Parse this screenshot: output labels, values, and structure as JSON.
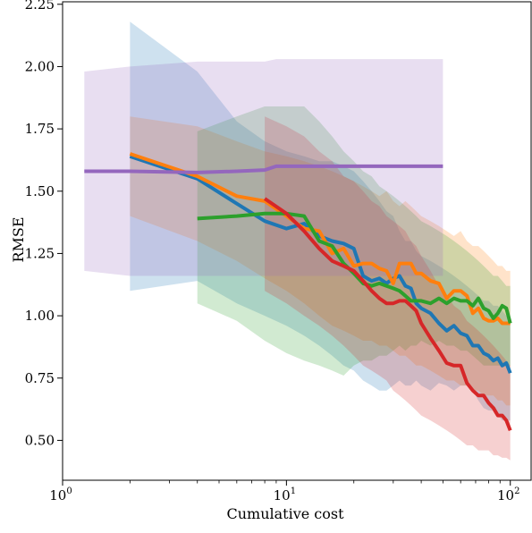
{
  "chart_data": {
    "type": "line",
    "title": "",
    "xlabel": "Cumulative cost",
    "ylabel": "RMSE",
    "x_scale": "log",
    "xlim": [
      1,
      125
    ],
    "ylim": [
      0.34,
      2.26
    ],
    "x_ticks": [
      1,
      10,
      100
    ],
    "x_tick_labels": [
      "10",
      "10",
      "10"
    ],
    "x_tick_exponents": [
      "0",
      "1",
      "2"
    ],
    "y_ticks": [
      0.5,
      0.75,
      1.0,
      1.25,
      1.5,
      1.75,
      2.0,
      2.25
    ],
    "y_tick_labels": [
      "0.50",
      "0.75",
      "1.00",
      "1.25",
      "1.50",
      "1.75",
      "2.00",
      "2.25"
    ],
    "grid": false,
    "legend": "none",
    "series": [
      {
        "color": "#1f77b4",
        "x": [
          2,
          4,
          6,
          8,
          10,
          12,
          14,
          16,
          18,
          20,
          22,
          24,
          26,
          28,
          30,
          32,
          34,
          36,
          38,
          40,
          44,
          48,
          52,
          56,
          60,
          64,
          68,
          72,
          76,
          80,
          84,
          88,
          92,
          96,
          100
        ],
        "y": [
          1.64,
          1.55,
          1.45,
          1.38,
          1.35,
          1.37,
          1.32,
          1.3,
          1.29,
          1.27,
          1.16,
          1.14,
          1.15,
          1.13,
          1.15,
          1.16,
          1.12,
          1.11,
          1.05,
          1.03,
          1.01,
          0.97,
          0.94,
          0.96,
          0.93,
          0.92,
          0.88,
          0.88,
          0.85,
          0.84,
          0.82,
          0.83,
          0.8,
          0.81,
          0.77
        ],
        "lower": [
          1.1,
          1.14,
          1.05,
          1.0,
          0.96,
          0.92,
          0.88,
          0.84,
          0.8,
          0.78,
          0.74,
          0.72,
          0.7,
          0.7,
          0.72,
          0.74,
          0.72,
          0.72,
          0.74,
          0.72,
          0.7,
          0.73,
          0.72,
          0.7,
          0.72,
          0.72,
          0.7,
          0.66,
          0.63,
          0.62,
          0.62,
          0.6,
          0.58,
          0.58,
          0.58
        ],
        "upper": [
          2.18,
          1.98,
          1.78,
          1.7,
          1.66,
          1.64,
          1.62,
          1.62,
          1.6,
          1.58,
          1.54,
          1.5,
          1.46,
          1.42,
          1.4,
          1.34,
          1.3,
          1.3,
          1.26,
          1.24,
          1.22,
          1.2,
          1.18,
          1.16,
          1.14,
          1.12,
          1.1,
          1.08,
          1.06,
          1.06,
          1.04,
          1.04,
          1.02,
          1.0,
          0.98
        ]
      },
      {
        "color": "#ff7f0e",
        "x": [
          2,
          4,
          6,
          8,
          10,
          12,
          14,
          16,
          18,
          20,
          22,
          24,
          26,
          28,
          30,
          32,
          34,
          36,
          38,
          40,
          44,
          48,
          52,
          56,
          60,
          64,
          68,
          72,
          76,
          80,
          84,
          88,
          92,
          96,
          100
        ],
        "y": [
          1.65,
          1.56,
          1.48,
          1.46,
          1.4,
          1.35,
          1.34,
          1.25,
          1.27,
          1.2,
          1.21,
          1.21,
          1.19,
          1.18,
          1.13,
          1.21,
          1.21,
          1.21,
          1.17,
          1.17,
          1.14,
          1.13,
          1.07,
          1.1,
          1.1,
          1.08,
          1.01,
          1.03,
          0.99,
          0.98,
          0.98,
          0.99,
          0.97,
          0.97,
          0.97
        ],
        "lower": [
          1.4,
          1.3,
          1.22,
          1.15,
          1.1,
          1.05,
          1.0,
          0.96,
          0.94,
          0.92,
          0.9,
          0.9,
          0.88,
          0.88,
          0.86,
          0.84,
          0.84,
          0.82,
          0.8,
          0.8,
          0.78,
          0.76,
          0.74,
          0.74,
          0.72,
          0.72,
          0.7,
          0.7,
          0.68,
          0.68,
          0.68,
          0.66,
          0.66,
          0.64,
          0.64
        ],
        "upper": [
          1.8,
          1.76,
          1.7,
          1.66,
          1.64,
          1.62,
          1.6,
          1.58,
          1.56,
          1.54,
          1.52,
          1.5,
          1.48,
          1.5,
          1.46,
          1.44,
          1.46,
          1.44,
          1.42,
          1.4,
          1.38,
          1.36,
          1.34,
          1.32,
          1.34,
          1.3,
          1.28,
          1.28,
          1.26,
          1.24,
          1.22,
          1.2,
          1.2,
          1.18,
          1.18
        ]
      },
      {
        "color": "#2ca02c",
        "x": [
          4,
          6,
          8,
          10,
          12,
          14,
          16,
          18,
          20,
          22,
          24,
          26,
          28,
          30,
          32,
          34,
          36,
          38,
          40,
          44,
          48,
          52,
          56,
          60,
          64,
          68,
          72,
          76,
          80,
          84,
          88,
          92,
          96,
          100
        ],
        "y": [
          1.39,
          1.4,
          1.41,
          1.41,
          1.4,
          1.3,
          1.28,
          1.21,
          1.17,
          1.13,
          1.12,
          1.13,
          1.12,
          1.11,
          1.1,
          1.08,
          1.06,
          1.06,
          1.06,
          1.05,
          1.07,
          1.05,
          1.07,
          1.06,
          1.06,
          1.04,
          1.07,
          1.03,
          1.02,
          0.99,
          1.01,
          1.04,
          1.03,
          0.97
        ],
        "lower": [
          1.05,
          0.98,
          0.9,
          0.85,
          0.82,
          0.8,
          0.78,
          0.76,
          0.8,
          0.82,
          0.82,
          0.84,
          0.84,
          0.86,
          0.88,
          0.86,
          0.88,
          0.88,
          0.9,
          0.88,
          0.9,
          0.88,
          0.88,
          0.86,
          0.86,
          0.84,
          0.82,
          0.8,
          0.8,
          0.8,
          0.8,
          0.8,
          0.8,
          0.8
        ],
        "upper": [
          1.74,
          1.8,
          1.84,
          1.84,
          1.84,
          1.78,
          1.72,
          1.66,
          1.62,
          1.58,
          1.56,
          1.52,
          1.5,
          1.48,
          1.46,
          1.44,
          1.42,
          1.4,
          1.38,
          1.36,
          1.34,
          1.32,
          1.3,
          1.28,
          1.26,
          1.24,
          1.22,
          1.2,
          1.18,
          1.16,
          1.16,
          1.14,
          1.12,
          1.12
        ]
      },
      {
        "color": "#d62728",
        "x": [
          8,
          10,
          12,
          14,
          16,
          18,
          20,
          22,
          24,
          26,
          28,
          30,
          32,
          34,
          36,
          38,
          40,
          44,
          48,
          52,
          56,
          60,
          64,
          68,
          72,
          76,
          80,
          84,
          88,
          92,
          96,
          100
        ],
        "y": [
          1.47,
          1.41,
          1.34,
          1.27,
          1.22,
          1.2,
          1.18,
          1.14,
          1.1,
          1.07,
          1.05,
          1.05,
          1.06,
          1.06,
          1.04,
          1.02,
          0.97,
          0.91,
          0.86,
          0.81,
          0.8,
          0.8,
          0.73,
          0.7,
          0.68,
          0.68,
          0.65,
          0.63,
          0.6,
          0.6,
          0.58,
          0.54
        ],
        "lower": [
          1.1,
          1.05,
          1.0,
          0.96,
          0.92,
          0.88,
          0.84,
          0.8,
          0.78,
          0.76,
          0.74,
          0.7,
          0.68,
          0.66,
          0.64,
          0.62,
          0.6,
          0.58,
          0.56,
          0.54,
          0.52,
          0.5,
          0.48,
          0.48,
          0.46,
          0.46,
          0.46,
          0.44,
          0.44,
          0.43,
          0.43,
          0.42
        ],
        "upper": [
          1.8,
          1.76,
          1.72,
          1.66,
          1.62,
          1.56,
          1.54,
          1.5,
          1.46,
          1.44,
          1.4,
          1.38,
          1.36,
          1.34,
          1.3,
          1.28,
          1.24,
          1.18,
          1.12,
          1.08,
          1.04,
          1.02,
          0.98,
          0.96,
          0.94,
          0.92,
          0.9,
          0.88,
          0.86,
          0.84,
          0.82,
          0.8
        ]
      },
      {
        "color": "#9467bd",
        "x": [
          1.25,
          2,
          4,
          6,
          8,
          9,
          10,
          20,
          30,
          40,
          50
        ],
        "y": [
          1.58,
          1.58,
          1.575,
          1.58,
          1.585,
          1.6,
          1.6,
          1.6,
          1.6,
          1.6,
          1.6
        ],
        "lower": [
          1.18,
          1.16,
          1.16,
          1.16,
          1.16,
          1.16,
          1.16,
          1.16,
          1.16,
          1.16,
          1.16
        ],
        "upper": [
          1.98,
          2.0,
          2.02,
          2.02,
          2.02,
          2.03,
          2.03,
          2.03,
          2.03,
          2.03,
          2.03
        ]
      }
    ]
  }
}
